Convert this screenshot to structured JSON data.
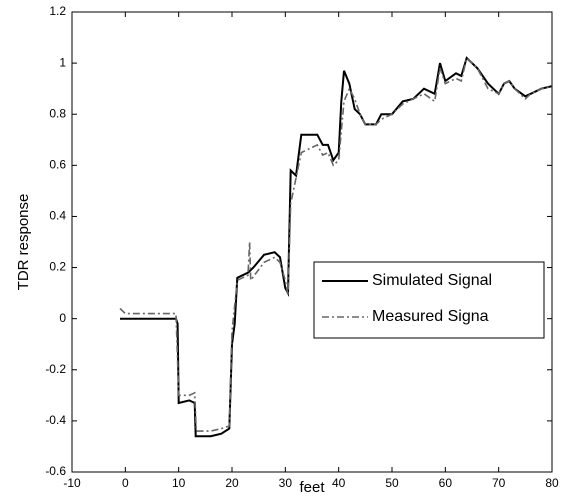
{
  "chart_data": {
    "type": "line",
    "xlabel": "feet",
    "ylabel": "TDR response",
    "xlim": [
      -10,
      80
    ],
    "xticks": [
      -10,
      0,
      10,
      20,
      30,
      40,
      50,
      60,
      70,
      80
    ],
    "ylim": [
      -0.6,
      1.2
    ],
    "yticks": [
      -0.6,
      -0.4,
      -0.2,
      0,
      0.2,
      0.4,
      0.6,
      0.8,
      1,
      1.2
    ],
    "grid": false,
    "legend": "right",
    "series": [
      {
        "name": "Simulated Signal",
        "color": "#000000",
        "style": "solid",
        "x": [
          -1,
          0,
          9.5,
          9.8,
          10,
          12,
          13,
          13.2,
          16,
          18,
          19.5,
          20,
          20.5,
          21,
          22,
          23,
          24,
          26,
          28,
          29,
          30,
          30.5,
          31,
          32,
          33,
          36,
          37,
          38,
          39,
          40,
          40.5,
          41,
          42,
          43,
          44,
          45,
          47,
          48,
          50,
          52,
          54,
          56,
          58,
          59,
          60,
          62,
          63,
          64,
          66,
          68,
          70,
          71,
          72,
          73,
          75,
          76,
          78,
          80
        ],
        "values": [
          0,
          0,
          0,
          -0.02,
          -0.33,
          -0.32,
          -0.33,
          -0.46,
          -0.46,
          -0.45,
          -0.43,
          -0.1,
          -0.02,
          0.16,
          0.17,
          0.18,
          0.2,
          0.25,
          0.26,
          0.24,
          0.12,
          0.1,
          0.58,
          0.56,
          0.72,
          0.72,
          0.68,
          0.68,
          0.62,
          0.65,
          0.85,
          0.97,
          0.92,
          0.82,
          0.8,
          0.76,
          0.76,
          0.8,
          0.8,
          0.85,
          0.86,
          0.9,
          0.88,
          1.0,
          0.93,
          0.96,
          0.95,
          1.02,
          0.98,
          0.92,
          0.88,
          0.92,
          0.93,
          0.9,
          0.87,
          0.88,
          0.9,
          0.91
        ]
      },
      {
        "name": "Measured Signa",
        "color": "#666666",
        "style": "dashdot",
        "x": [
          -1,
          0,
          5,
          9.5,
          10,
          12,
          13,
          13.3,
          16,
          18,
          19.5,
          20,
          21,
          23,
          23.3,
          23.5,
          26,
          28,
          29,
          30,
          30.5,
          31,
          32,
          33,
          36,
          37,
          38,
          39,
          40,
          41,
          42,
          43,
          44,
          45,
          47,
          48,
          50,
          52,
          54,
          56,
          58,
          59,
          60,
          62,
          63,
          64,
          66,
          68,
          70,
          71,
          72,
          73,
          75,
          76,
          78,
          80
        ],
        "values": [
          0.04,
          0.02,
          0.02,
          0.02,
          -0.3,
          -0.3,
          -0.29,
          -0.44,
          -0.44,
          -0.43,
          -0.42,
          -0.05,
          0.15,
          0.17,
          0.3,
          0.15,
          0.22,
          0.24,
          0.22,
          0.15,
          0.09,
          0.45,
          0.55,
          0.65,
          0.68,
          0.64,
          0.65,
          0.6,
          0.62,
          0.85,
          0.9,
          0.86,
          0.8,
          0.76,
          0.76,
          0.78,
          0.8,
          0.84,
          0.86,
          0.88,
          0.85,
          0.98,
          0.92,
          0.94,
          0.93,
          1.02,
          0.98,
          0.9,
          0.88,
          0.92,
          0.93,
          0.9,
          0.86,
          0.88,
          0.9,
          0.91
        ]
      }
    ]
  }
}
